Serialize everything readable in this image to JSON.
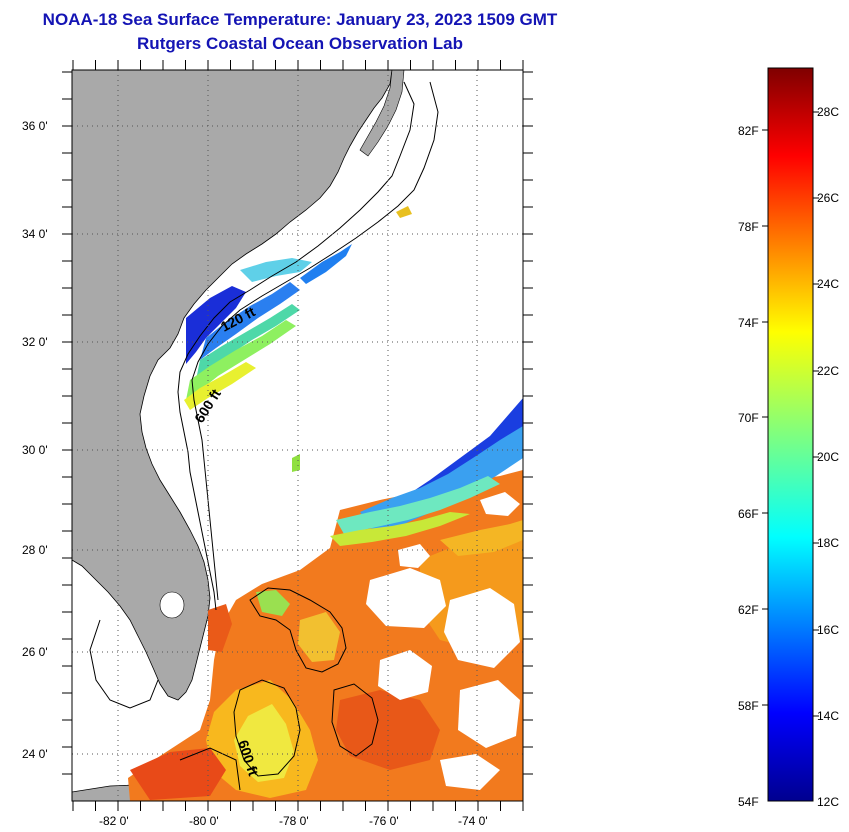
{
  "header": {
    "title": "NOAA-18 Sea Surface Temperature:  January 23, 2023 1509 GMT",
    "subtitle": "Rutgers Coastal Ocean Observation Lab"
  },
  "map": {
    "lat_ticks": [
      "36 0'",
      "34 0'",
      "32 0'",
      "30 0'",
      "28 0'",
      "26 0'",
      "24 0'"
    ],
    "lon_ticks": [
      "-82 0'",
      "-80 0'",
      "-78 0'",
      "-76 0'",
      "-74 0'"
    ],
    "contour_labels": [
      "120 ft",
      "600 ft",
      "600 ft"
    ],
    "land_color": "#a9a9a9",
    "grid": true
  },
  "colorbar": {
    "fahrenheit_labels": [
      "82F",
      "78F",
      "74F",
      "70F",
      "66F",
      "62F",
      "58F",
      "54F"
    ],
    "celsius_labels": [
      "28C",
      "26C",
      "24C",
      "22C",
      "20C",
      "18C",
      "16C",
      "14C",
      "12C"
    ],
    "colormap": "jet"
  }
}
